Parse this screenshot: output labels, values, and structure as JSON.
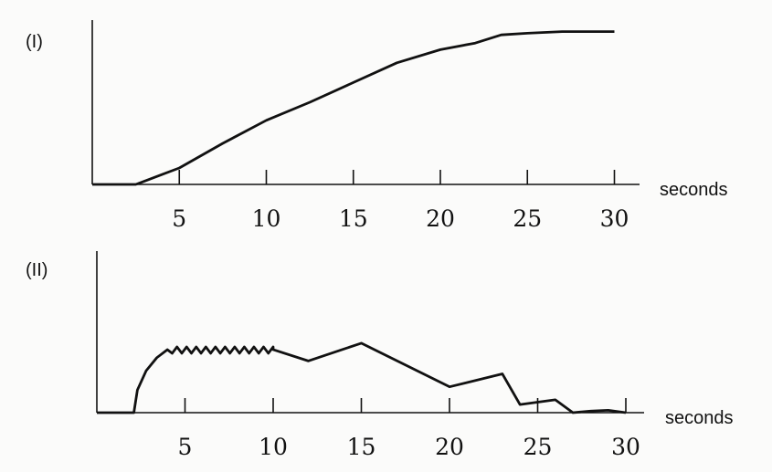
{
  "chart_data": [
    {
      "type": "line",
      "panel_label": "(I)",
      "xlabel": "seconds",
      "ylabel": "",
      "xlim": [
        0,
        31
      ],
      "xticks": [
        5,
        10,
        15,
        20,
        25,
        30
      ],
      "y_units": "relative (unlabeled axis, fraction of axis height)",
      "grid": false,
      "x": [
        0,
        2,
        2.5,
        3,
        4,
        5,
        7.5,
        10,
        12.5,
        15,
        17.5,
        20,
        22,
        23.5,
        25,
        27,
        30
      ],
      "y": [
        0,
        0,
        0,
        0.02,
        0.06,
        0.1,
        0.25,
        0.39,
        0.5,
        0.62,
        0.74,
        0.82,
        0.86,
        0.91,
        0.92,
        0.93,
        0.93
      ]
    },
    {
      "type": "line",
      "panel_label": "(II)",
      "xlabel": "seconds",
      "ylabel": "",
      "xlim": [
        0,
        31
      ],
      "xticks": [
        5,
        10,
        15,
        20,
        25,
        30
      ],
      "y_units": "relative (unlabeled axis, fraction of axis height)",
      "grid": false,
      "oscillation_between_seconds": [
        4,
        10
      ],
      "x": [
        0,
        2.1,
        2.3,
        2.8,
        3.4,
        4,
        10,
        12,
        15,
        20,
        23,
        24,
        26,
        27,
        28,
        29,
        30
      ],
      "y": [
        0,
        0,
        0.14,
        0.26,
        0.34,
        0.39,
        0.39,
        0.32,
        0.43,
        0.16,
        0.24,
        0.05,
        0.08,
        0,
        0.01,
        0.015,
        0
      ]
    }
  ]
}
